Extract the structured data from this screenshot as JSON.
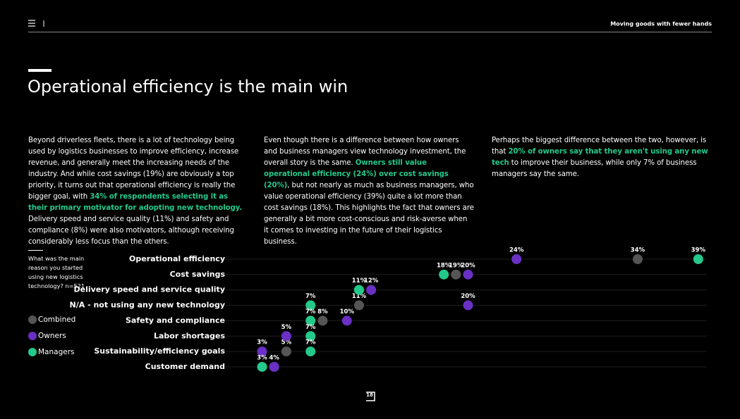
{
  "header": {
    "section": "Moving goods with fewer hands"
  },
  "title": "Operational efficiency is the main win",
  "columns": [
    [
      {
        "text": "Beyond driverless fleets, there is a lot of technology being used by logistics businesses to improve efficiency, increase revenue, and generally meet the increasing needs of the industry. And while cost savings (19%) are obviously a top priority, it turns out that operational efficiency is really the bigger goal, with "
      },
      {
        "text": "34% of respondents selecting it as their primary motivator for adopting new technology.",
        "emphasis": true
      },
      {
        "text": " Delivery speed and service quality (11%) and safety and compliance (8%) were also motivators, although receiving considerably less focus than the others."
      }
    ],
    [
      {
        "text": "Even though there is a difference between how owners and business managers view technology investment, the overall story is the same. "
      },
      {
        "text": "Owners still value operational efficiency (24%) over cost savings (20%)",
        "emphasis": true
      },
      {
        "text": ", but not nearly as much as business managers, who value operational efficiency (39%) quite a lot more than cost savings (18%). This highlights the fact that owners are generally a bit more cost-conscious and risk-averse when it comes to investing in the future of their logistics business."
      }
    ],
    [
      {
        "text": "Perhaps the biggest difference between the two, however, is that "
      },
      {
        "text": "20% of owners say that they aren't using any new tech",
        "emphasis": true
      },
      {
        "text": " to improve their business, while only 7% of business managers say the same."
      }
    ]
  ],
  "chart_data": {
    "type": "dot",
    "note": "What was the main reason you started using new logistics technology? n=521",
    "categories": [
      "Operational efficiency",
      "Cost savings",
      "Delivery speed and service quality",
      "N/A - not using any new technology",
      "Safety and compliance",
      "Labor shortages",
      "Sustainability/efficiency goals",
      "Customer demand"
    ],
    "xlim": [
      0,
      40
    ],
    "series": [
      {
        "name": "Combined",
        "color": "#555555",
        "values": [
          34,
          19,
          11,
          11,
          8,
          7,
          5,
          4
        ],
        "value_labels": [
          "34%",
          "19%",
          null,
          "11%",
          "8%",
          null,
          "5%",
          null
        ]
      },
      {
        "name": "Owners",
        "color": "#6a2fc4",
        "values": [
          24,
          20,
          12,
          20,
          10,
          5,
          3,
          4
        ],
        "value_labels": [
          "24%",
          "20%",
          "12%",
          "20%",
          "10%",
          "5%",
          "3%",
          "4%"
        ]
      },
      {
        "name": "Managers",
        "color": "#23c98b",
        "values": [
          39,
          18,
          11,
          7,
          7,
          7,
          7,
          3
        ],
        "value_labels": [
          "39%",
          "18%",
          "11%",
          "7%",
          "7%",
          "7%",
          "7%",
          "3%"
        ]
      }
    ]
  },
  "page_number": "18"
}
